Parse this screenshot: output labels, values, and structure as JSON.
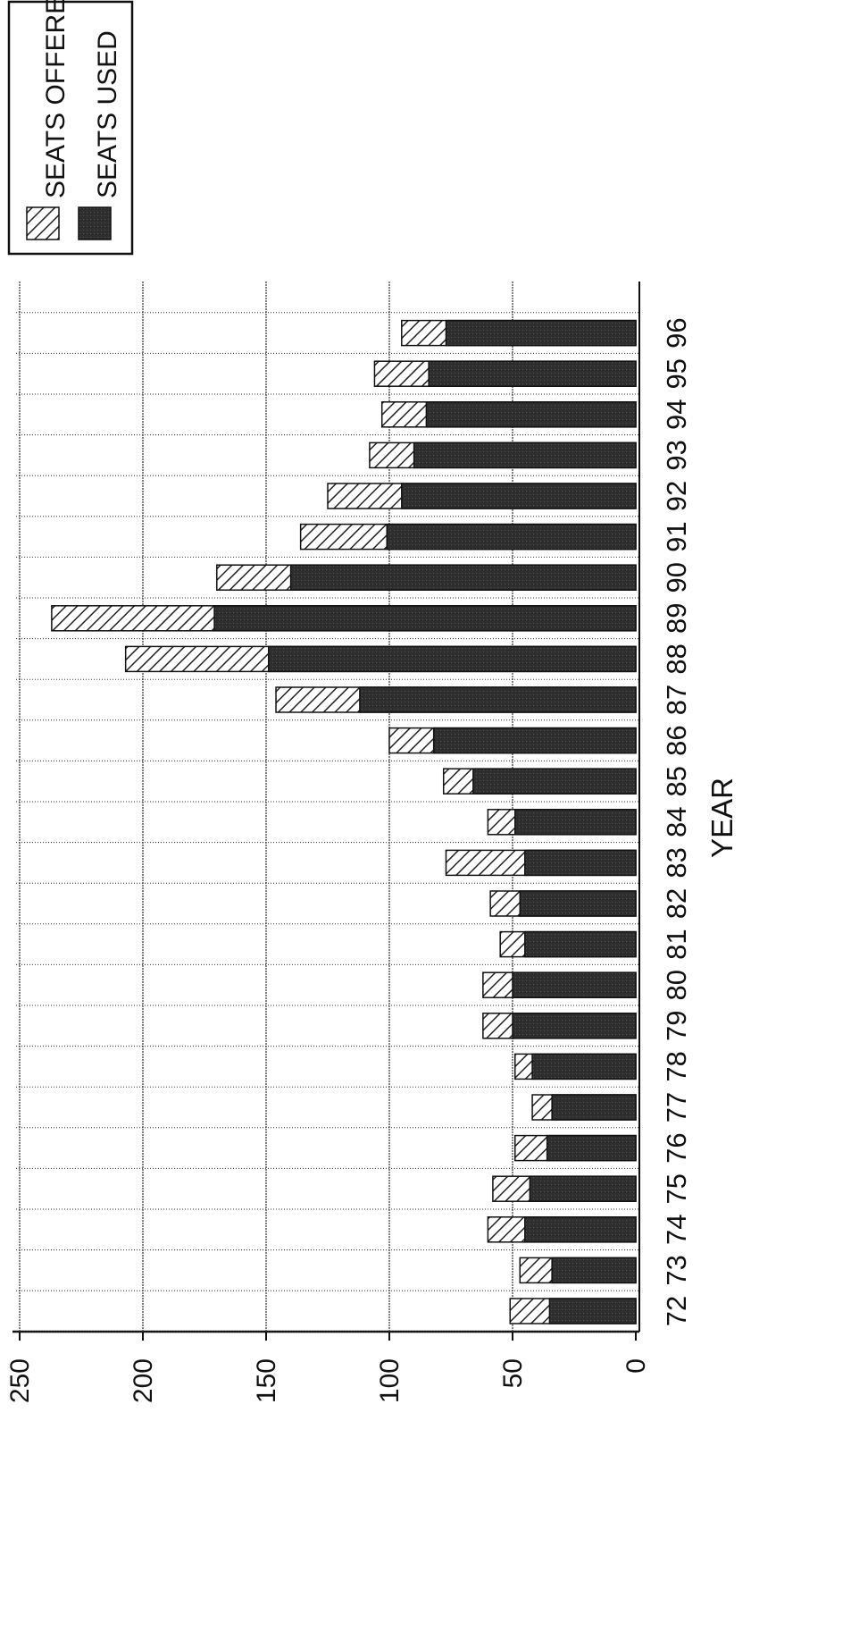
{
  "chart_data": {
    "type": "bar",
    "stacked": false,
    "orientation": "horizontal",
    "page_rotation_degrees": -90,
    "xlabel": "YEAR",
    "ylabel": "",
    "ylim": [
      0,
      250
    ],
    "yticks": [
      "0",
      "50",
      "100",
      "150",
      "200",
      "250"
    ],
    "categories": [
      "72",
      "73",
      "74",
      "75",
      "76",
      "77",
      "78",
      "79",
      "80",
      "81",
      "82",
      "83",
      "84",
      "85",
      "86",
      "87",
      "88",
      "89",
      "90",
      "91",
      "92",
      "93",
      "94",
      "95",
      "96"
    ],
    "series": [
      {
        "name": "SEATS OFFERED",
        "pattern": "hatched",
        "values": [
          51,
          47,
          60,
          58,
          49,
          42,
          49,
          62,
          62,
          55,
          59,
          77,
          60,
          78,
          100,
          146,
          207,
          237,
          170,
          136,
          125,
          108,
          103,
          106,
          95
        ]
      },
      {
        "name": "SEATS USED",
        "pattern": "dark",
        "values": [
          35,
          34,
          45,
          43,
          36,
          34,
          42,
          50,
          50,
          45,
          47,
          45,
          49,
          66,
          82,
          112,
          149,
          171,
          140,
          101,
          95,
          90,
          85,
          84,
          77
        ]
      }
    ],
    "grid": true,
    "legend": "top-right",
    "colors": {
      "used": "#2e2e2e",
      "offered_fill": "#ffffff",
      "hatch": "#222222",
      "axis": "#111111"
    }
  }
}
